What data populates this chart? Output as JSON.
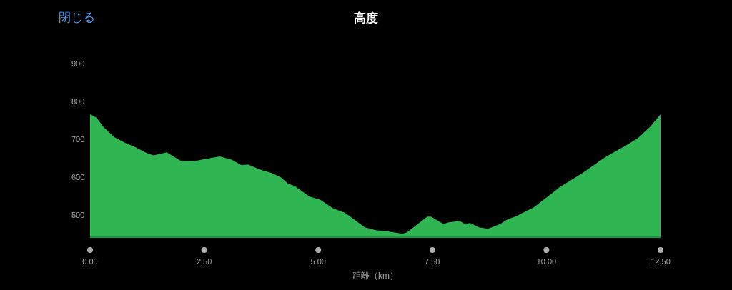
{
  "chart_data": {
    "type": "area",
    "title": "高度",
    "xlabel": "距離（km）",
    "annotations": [
      "閉じる"
    ],
    "x": [
      0,
      0.14,
      0.3,
      0.53,
      0.77,
      1.0,
      1.24,
      1.39,
      1.68,
      1.99,
      2.3,
      2.84,
      3.09,
      3.32,
      3.46,
      3.71,
      3.98,
      4.18,
      4.34,
      4.48,
      4.81,
      5.04,
      5.34,
      5.59,
      6.02,
      6.28,
      6.48,
      6.85,
      6.95,
      7.39,
      7.47,
      7.74,
      7.86,
      8.1,
      8.21,
      8.33,
      8.52,
      8.72,
      8.99,
      9.12,
      9.35,
      9.73,
      9.93,
      10.29,
      10.76,
      11.29,
      11.76,
      12.01,
      12.28,
      12.5
    ],
    "series": [
      {
        "color": "#2fb552",
        "values": [
          766,
          757,
          732,
          706,
          691,
          679,
          664,
          658,
          666,
          643,
          643,
          655,
          647,
          632,
          634,
          621,
          611,
          600,
          583,
          577,
          549,
          541,
          517,
          506,
          468,
          460,
          458,
          451,
          455,
          496,
          496,
          477,
          481,
          485,
          477,
          479,
          468,
          464,
          477,
          487,
          498,
          521,
          540,
          574,
          609,
          653,
          685,
          704,
          734,
          766
        ]
      }
    ],
    "xlim": [
      0,
      12.5
    ],
    "ylim": [
      442,
      900
    ],
    "xticks": [
      {
        "value": 0,
        "label": "0.00"
      },
      {
        "value": 2.5,
        "label": "2.50"
      },
      {
        "value": 5,
        "label": "5.00"
      },
      {
        "value": 7.5,
        "label": "7.50"
      },
      {
        "value": 10,
        "label": "10.00"
      },
      {
        "value": 12.5,
        "label": "12.50"
      }
    ],
    "yticks": [
      500,
      600,
      700,
      800,
      900
    ],
    "grid": false
  }
}
